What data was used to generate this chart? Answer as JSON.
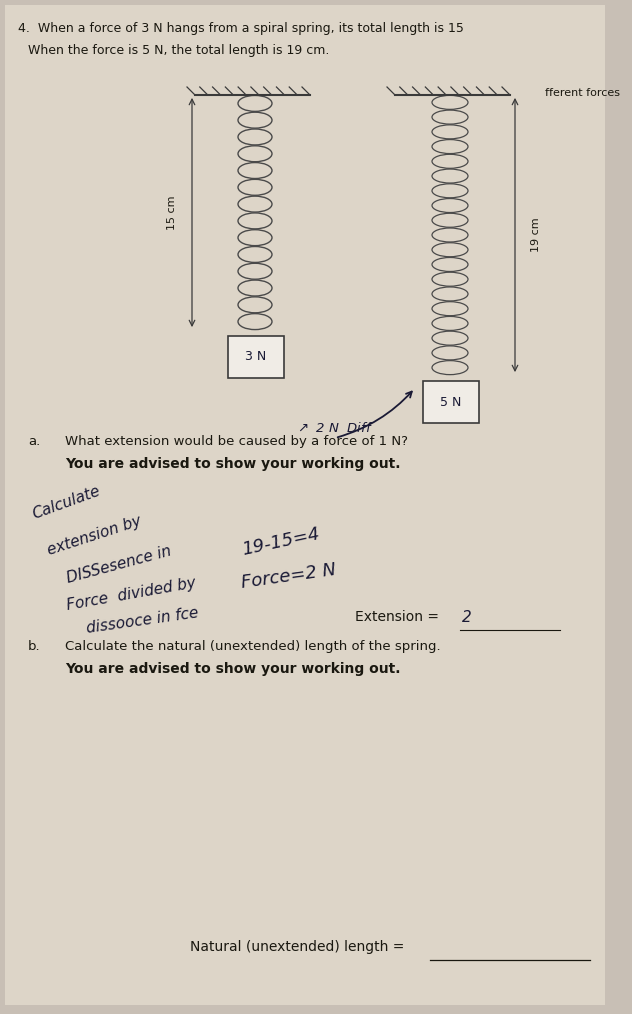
{
  "bg_color": "#c8bfb5",
  "paper_color": "#ddd5c8",
  "title_line1": "4.  When a force of 3 N hangs from a spiral spring, its total length is 15",
  "title_line2": "    When the force is 5 N, the total length is 19 cm.",
  "side_text": "fferent forces",
  "spring1_label": "15 cm",
  "spring2_label": "19 cm",
  "weight1_label": "3 N",
  "weight2_label": "5 N",
  "question_a": "What extension would be caused by a force of 1 N?",
  "bold_a": "You are advised to show your working out.",
  "extension_line": "Extension = ",
  "extension_answer": "2",
  "question_b": "Calculate the natural (unextended) length of the spring.",
  "bold_b": "You are advised to show your working out.",
  "natural_length_line": "Natural (unextended) length = ",
  "text_color": "#1a1810",
  "handwritten_color": "#1a1a35",
  "spring_color": "#4a4a4a",
  "ceiling_color": "#3a3a3a"
}
